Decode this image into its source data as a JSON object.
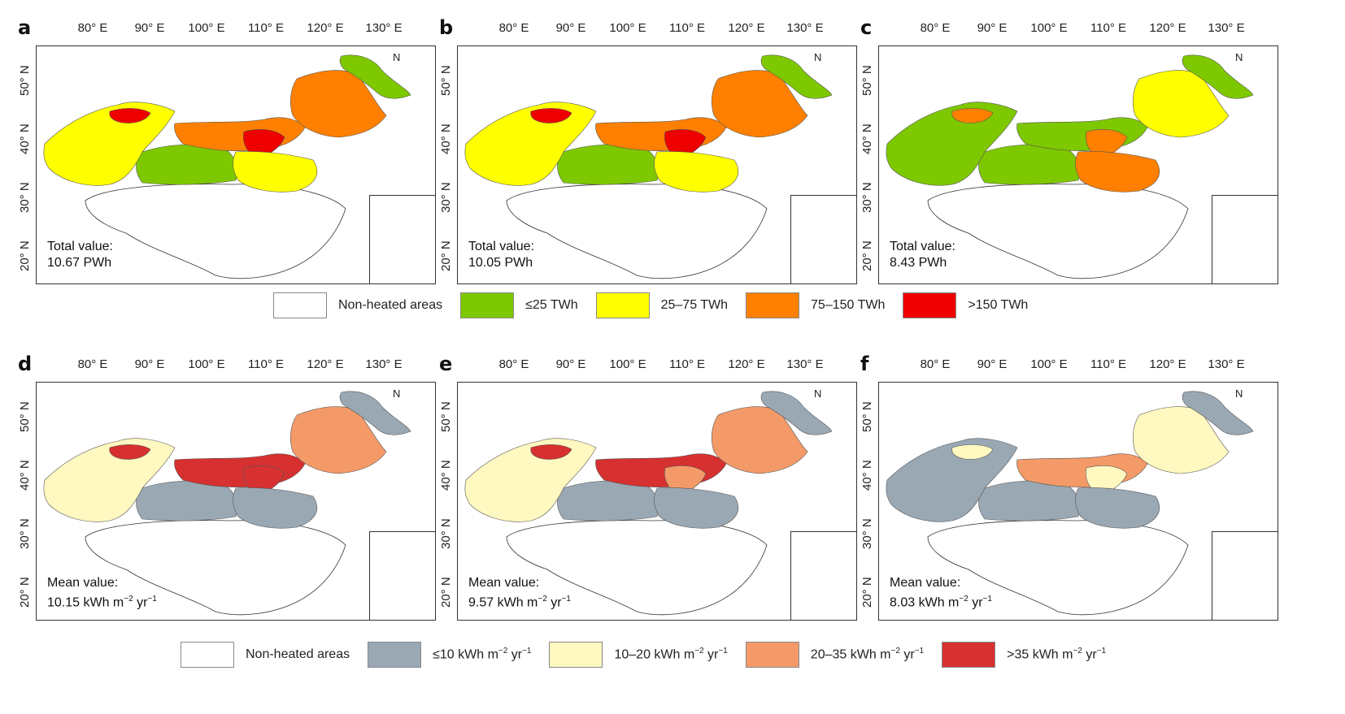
{
  "x_ticks": [
    "80° E",
    "90° E",
    "100° E",
    "110° E",
    "120° E",
    "130° E"
  ],
  "y_ticks": [
    "50° N",
    "40° N",
    "30° N",
    "20° N"
  ],
  "north_label": "N",
  "top_panels": [
    {
      "label": "a",
      "stat_title": "Total value:",
      "stat_value": "10.67 PWh"
    },
    {
      "label": "b",
      "stat_title": "Total value:",
      "stat_value": "10.05 PWh"
    },
    {
      "label": "c",
      "stat_title": "Total value:",
      "stat_value": "8.43 PWh"
    }
  ],
  "bottom_panels": [
    {
      "label": "d",
      "stat_title": "Mean value:",
      "stat_value_prefix": "10.15 kWh m",
      "stat_sup1": "−2",
      "stat_mid": " yr",
      "stat_sup2": "−1"
    },
    {
      "label": "e",
      "stat_title": "Mean value:",
      "stat_value_prefix": "9.57 kWh m",
      "stat_sup1": "−2",
      "stat_mid": " yr",
      "stat_sup2": "−1"
    },
    {
      "label": "f",
      "stat_title": "Mean value:",
      "stat_value_prefix": "8.03 kWh m",
      "stat_sup1": "−2",
      "stat_mid": " yr",
      "stat_sup2": "−1"
    }
  ],
  "legend_top": [
    {
      "label": "Non-heated areas",
      "color": "#ffffff"
    },
    {
      "label": "≤25 TWh",
      "color": "#7ec800"
    },
    {
      "label": "25–75 TWh",
      "color": "#ffff00"
    },
    {
      "label": "75–150 TWh",
      "color": "#ff8000"
    },
    {
      "label": ">150 TWh",
      "color": "#ee0000"
    }
  ],
  "legend_bottom": [
    {
      "label": "Non-heated areas",
      "color": "#ffffff"
    },
    {
      "label_prefix": "≤10 kWh m",
      "sup1": "−2",
      "mid": " yr",
      "sup2": "−1",
      "color": "#9aa8b4"
    },
    {
      "label_prefix": "10–20 kWh m",
      "sup1": "−2",
      "mid": " yr",
      "sup2": "−1",
      "color": "#fff8c0"
    },
    {
      "label_prefix": "20–35 kWh m",
      "sup1": "−2",
      "mid": " yr",
      "sup2": "−1",
      "color": "#f49a68"
    },
    {
      "label_prefix": ">35 kWh m",
      "sup1": "−2",
      "mid": " yr",
      "sup2": "−1",
      "color": "#d73030"
    }
  ],
  "map_colors": {
    "panel_a": {
      "west_basin": "#7ec800",
      "northwest": "#ffff00",
      "north_band": "#ff8000",
      "core": "#ee0000",
      "northeast": "#ff8000",
      "ne_tip": "#7ec800",
      "north_china": "#ffff00",
      "hot_west": "#ee0000"
    },
    "panel_b": {
      "west_basin": "#7ec800",
      "northwest": "#ffff00",
      "north_band": "#ff8000",
      "core": "#ee0000",
      "northeast": "#ff8000",
      "ne_tip": "#7ec800",
      "north_china": "#ffff00",
      "hot_west": "#ee0000"
    },
    "panel_c": {
      "west_basin": "#7ec800",
      "northwest": "#7ec800",
      "north_band": "#7ec800",
      "core": "#ff8000",
      "northeast": "#ffff00",
      "ne_tip": "#7ec800",
      "north_china": "#ff8000",
      "hot_west": "#ff8000"
    },
    "panel_d": {
      "west_basin": "#9aa8b4",
      "northwest": "#fff8c0",
      "north_band": "#d73030",
      "core": "#d73030",
      "northeast": "#f49a68",
      "ne_tip": "#9aa8b4",
      "north_china": "#9aa8b4",
      "hot_west": "#d73030"
    },
    "panel_e": {
      "west_basin": "#9aa8b4",
      "northwest": "#fff8c0",
      "north_band": "#d73030",
      "core": "#f49a68",
      "northeast": "#f49a68",
      "ne_tip": "#9aa8b4",
      "north_china": "#9aa8b4",
      "hot_west": "#d73030"
    },
    "panel_f": {
      "west_basin": "#9aa8b4",
      "northwest": "#9aa8b4",
      "north_band": "#f49a68",
      "core": "#fff8c0",
      "northeast": "#fff8c0",
      "ne_tip": "#9aa8b4",
      "north_china": "#9aa8b4",
      "hot_west": "#fff8c0"
    }
  }
}
